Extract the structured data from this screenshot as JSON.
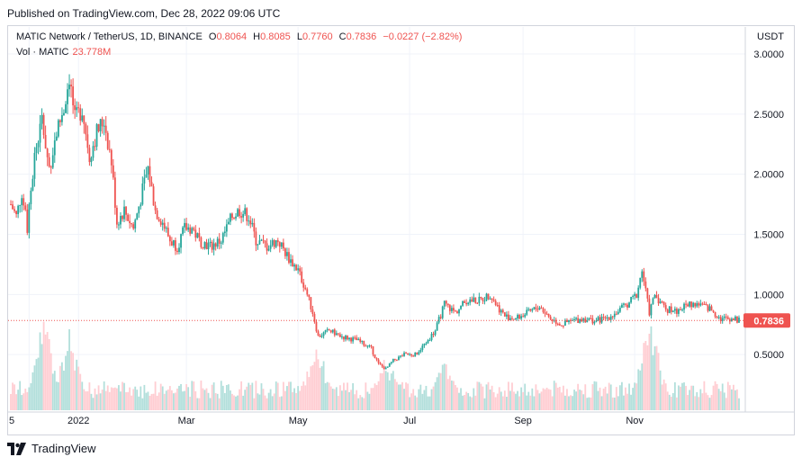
{
  "header": {
    "published": "Published on TradingView.com, Dec 28, 2022 09:06 UTC"
  },
  "legend": {
    "symbol": "MATIC Network / TetherUS, 1D, BINANCE",
    "open_label": "O",
    "open": "0.8064",
    "high_label": "H",
    "high": "0.8085",
    "low_label": "L",
    "low": "0.7760",
    "close_label": "C",
    "close": "0.7836",
    "change": "−0.0227 (−2.82%)",
    "vol_label": "Vol · MATIC",
    "vol_value": "23.778M"
  },
  "colors": {
    "up": "#26a69a",
    "down": "#ef5350",
    "up_vol": "#b2dfdb",
    "down_vol": "#ffcdd2",
    "last_price": "#ef5350"
  },
  "chart_data": {
    "type": "candlestick",
    "title": "MATIC Network / TetherUS, 1D, BINANCE",
    "currency": "USDT",
    "ylim": [
      0,
      3.0
    ],
    "y_ticks": [
      0.5,
      1.0,
      1.5,
      2.0,
      2.5,
      3.0
    ],
    "y_tick_labels": [
      "0.5000",
      "1.0000",
      "1.5000",
      "2.0000",
      "2.5000",
      "3.0000"
    ],
    "x_tick_labels": [
      "5",
      "2022",
      "Mar",
      "May",
      "Jul",
      "Sep",
      "Nov"
    ],
    "last_price": 0.7836,
    "last_price_label": "0.7836",
    "close_path": [
      [
        "2021-11-25",
        1.75
      ],
      [
        "2021-11-28",
        1.65
      ],
      [
        "2021-12-01",
        1.85
      ],
      [
        "2021-12-04",
        1.55
      ],
      [
        "2021-12-08",
        2.15
      ],
      [
        "2021-12-12",
        2.45
      ],
      [
        "2021-12-16",
        2.05
      ],
      [
        "2021-12-20",
        2.35
      ],
      [
        "2021-12-24",
        2.55
      ],
      [
        "2021-12-27",
        2.82
      ],
      [
        "2021-12-30",
        2.45
      ],
      [
        "2022-01-03",
        2.55
      ],
      [
        "2022-01-07",
        2.15
      ],
      [
        "2022-01-11",
        2.35
      ],
      [
        "2022-01-15",
        2.45
      ],
      [
        "2022-01-19",
        2.1
      ],
      [
        "2022-01-22",
        1.6
      ],
      [
        "2022-01-26",
        1.7
      ],
      [
        "2022-01-31",
        1.55
      ],
      [
        "2022-02-04",
        1.8
      ],
      [
        "2022-02-08",
        2.05
      ],
      [
        "2022-02-12",
        1.7
      ],
      [
        "2022-02-16",
        1.6
      ],
      [
        "2022-02-20",
        1.45
      ],
      [
        "2022-02-24",
        1.4
      ],
      [
        "2022-02-28",
        1.55
      ],
      [
        "2022-03-04",
        1.55
      ],
      [
        "2022-03-08",
        1.45
      ],
      [
        "2022-03-14",
        1.4
      ],
      [
        "2022-03-20",
        1.45
      ],
      [
        "2022-03-26",
        1.65
      ],
      [
        "2022-03-30",
        1.7
      ],
      [
        "2022-04-04",
        1.65
      ],
      [
        "2022-04-08",
        1.45
      ],
      [
        "2022-04-14",
        1.4
      ],
      [
        "2022-04-20",
        1.45
      ],
      [
        "2022-04-26",
        1.3
      ],
      [
        "2022-05-01",
        1.2
      ],
      [
        "2022-05-05",
        1.05
      ],
      [
        "2022-05-09",
        0.85
      ],
      [
        "2022-05-12",
        0.65
      ],
      [
        "2022-05-18",
        0.7
      ],
      [
        "2022-05-25",
        0.65
      ],
      [
        "2022-06-02",
        0.62
      ],
      [
        "2022-06-10",
        0.55
      ],
      [
        "2022-06-14",
        0.42
      ],
      [
        "2022-06-18",
        0.38
      ],
      [
        "2022-06-22",
        0.45
      ],
      [
        "2022-06-28",
        0.5
      ],
      [
        "2022-07-04",
        0.5
      ],
      [
        "2022-07-10",
        0.6
      ],
      [
        "2022-07-15",
        0.7
      ],
      [
        "2022-07-20",
        0.92
      ],
      [
        "2022-07-26",
        0.85
      ],
      [
        "2022-08-01",
        0.95
      ],
      [
        "2022-08-08",
        0.95
      ],
      [
        "2022-08-14",
        1.0
      ],
      [
        "2022-08-18",
        0.9
      ],
      [
        "2022-08-22",
        0.82
      ],
      [
        "2022-08-28",
        0.8
      ],
      [
        "2022-09-04",
        0.85
      ],
      [
        "2022-09-10",
        0.9
      ],
      [
        "2022-09-16",
        0.8
      ],
      [
        "2022-09-22",
        0.75
      ],
      [
        "2022-09-28",
        0.78
      ],
      [
        "2022-10-04",
        0.8
      ],
      [
        "2022-10-10",
        0.78
      ],
      [
        "2022-10-16",
        0.8
      ],
      [
        "2022-10-22",
        0.85
      ],
      [
        "2022-10-28",
        0.92
      ],
      [
        "2022-11-02",
        1.0
      ],
      [
        "2022-11-05",
        1.2
      ],
      [
        "2022-11-09",
        0.85
      ],
      [
        "2022-11-12",
        1.0
      ],
      [
        "2022-11-18",
        0.88
      ],
      [
        "2022-11-24",
        0.86
      ],
      [
        "2022-11-30",
        0.92
      ],
      [
        "2022-12-06",
        0.92
      ],
      [
        "2022-12-12",
        0.88
      ],
      [
        "2022-12-18",
        0.8
      ],
      [
        "2022-12-24",
        0.8
      ],
      [
        "2022-12-28",
        0.7836
      ]
    ],
    "volume_peaks": [
      [
        "2021-12-13",
        1.0
      ],
      [
        "2021-12-27",
        0.85
      ],
      [
        "2022-05-11",
        0.75
      ],
      [
        "2022-06-18",
        0.6
      ],
      [
        "2022-07-20",
        0.55
      ],
      [
        "2022-11-09",
        1.0
      ]
    ]
  }
}
